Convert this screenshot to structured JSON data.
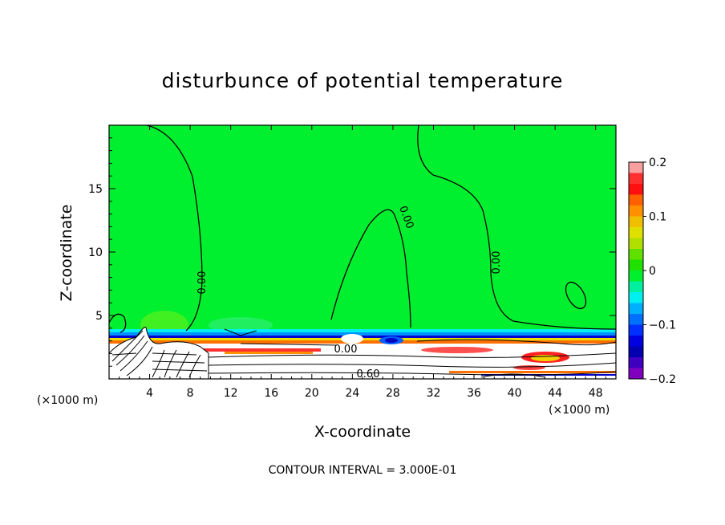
{
  "chart_data": {
    "type": "heatmap",
    "title": "disturbunce of potential temperature",
    "xlabel": "X-coordinate",
    "ylabel": "Z-coordinate",
    "x_unit": "(×1000 m)",
    "z_unit": "(×1000 m)",
    "xlim": [
      0,
      50
    ],
    "ylim": [
      0,
      20
    ],
    "x_ticks": [
      4,
      8,
      12,
      16,
      20,
      24,
      28,
      32,
      36,
      40,
      44,
      48
    ],
    "x_tick_labels": [
      "4",
      "8",
      "12",
      "16",
      "20",
      "24",
      "28",
      "32",
      "36",
      "40",
      "44",
      "48"
    ],
    "y_ticks": [
      5,
      10,
      15
    ],
    "y_tick_labels": [
      "5",
      "10",
      "15"
    ],
    "colorbar": {
      "range": [
        -0.2,
        0.2
      ],
      "ticks": [
        0.2,
        0.1,
        0,
        -0.1,
        -0.2
      ],
      "tick_labels": [
        "0.2",
        "0.1",
        "0",
        "−0.1",
        "−0.2"
      ],
      "colors": [
        "#f8a0a0",
        "#ff3030",
        "#ff1010",
        "#ff6000",
        "#ff9000",
        "#f0c000",
        "#e0e000",
        "#b0e000",
        "#60e000",
        "#20e000",
        "#00f030",
        "#00f0a0",
        "#00f0f0",
        "#00b0ff",
        "#0070ff",
        "#0030ff",
        "#0000e0",
        "#0000b0",
        "#4000c0",
        "#8000c0"
      ]
    },
    "contour_labels": [
      "0.00",
      "0.00",
      "0.00",
      "0.00",
      "0.60"
    ],
    "contour_interval": "CONTOUR INTERVAL = 3.000E-01"
  }
}
